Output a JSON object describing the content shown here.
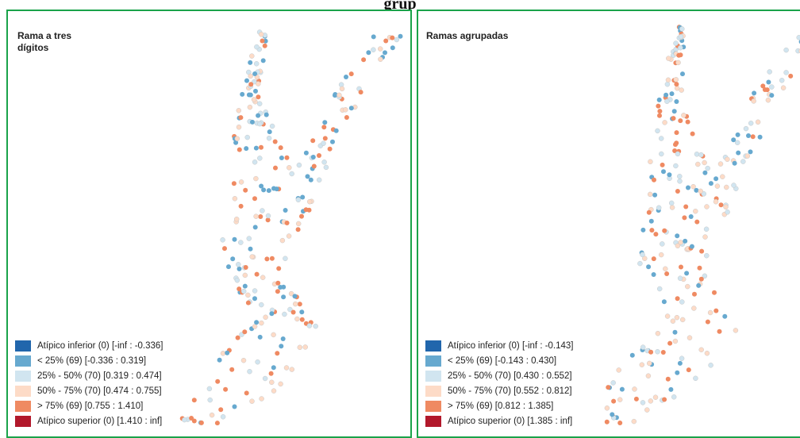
{
  "title": "grup",
  "colors": {
    "atipico_inferior": "#2166ac",
    "q1": "#67a9cf",
    "q2": "#d1e5f0",
    "q3": "#fddbc7",
    "q4": "#ef8a62",
    "atipico_superior": "#b2182b",
    "frame": "#1aa34a"
  },
  "panels": [
    {
      "title": "Rama a tres dígitos",
      "legend": [
        {
          "label": "Atípico inferior (0)  [-inf : -0.336]",
          "class": "atipico_inferior"
        },
        {
          "label": "< 25% (69)  [-0.336 : 0.319]",
          "class": "q1"
        },
        {
          "label": "25% - 50% (70)  [0.319 : 0.474]",
          "class": "q2"
        },
        {
          "label": "50% - 75% (70)  [0.474 : 0.755]",
          "class": "q3"
        },
        {
          "label": "> 75% (69)  [0.755 : 1.410]",
          "class": "q4"
        },
        {
          "label": "Atípico superior (0)  [1.410 : inf]",
          "class": "atipico_superior"
        }
      ]
    },
    {
      "title": "Ramas agrupadas",
      "legend": [
        {
          "label": "Atípico inferior (0)  [-inf : -0.143]",
          "class": "atipico_inferior"
        },
        {
          "label": "< 25% (69)  [-0.143 : 0.430]",
          "class": "q1"
        },
        {
          "label": "25% - 50% (70)  [0.430 : 0.552]",
          "class": "q2"
        },
        {
          "label": "50% - 75% (70)  [0.552 : 0.812]",
          "class": "q3"
        },
        {
          "label": "> 75% (69)  [0.812 : 1.385]",
          "class": "q4"
        },
        {
          "label": "Atípico superior (0)  [1.385 : inf]",
          "class": "atipico_superior"
        }
      ]
    }
  ]
}
